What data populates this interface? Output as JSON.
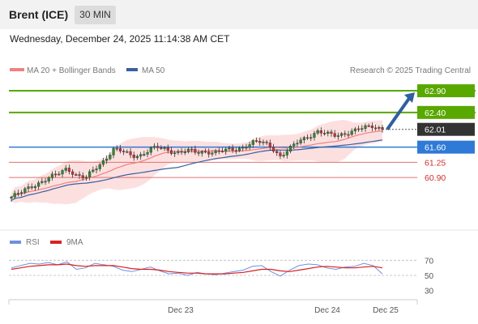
{
  "header": {
    "title": "Brent (ICE)",
    "timeframe": "30 MIN"
  },
  "subtitle": "Wednesday, December 24, 2025 11:14:38 AM CET",
  "legend": {
    "ma20": "MA 20 + Bollinger Bands",
    "ma50": "MA 50",
    "credit": "Research © 2025 Trading Central",
    "rsi": "RSI",
    "rsi_ma": "9MA"
  },
  "colors": {
    "resistance": "#58a800",
    "support": "#e07070",
    "pivot": "#2f7ad6",
    "current": "#333333",
    "ma20": "#f08080",
    "ma50": "#3a5fa0",
    "bands": "#fbd6d6",
    "up_candle": "#2e8b2e",
    "down_candle": "#d03030",
    "arrow": "#2f5f9f",
    "rsi": "#6f8fe0",
    "rsi_ma": "#d92020"
  },
  "chart_data": [
    {
      "type": "candlestick",
      "title": "Brent (ICE)",
      "timeframe": "30 MIN",
      "ylim": [
        59.8,
        63.2
      ],
      "x_ticks": [
        "Dec 23",
        "Dec 24",
        "Dec 25"
      ],
      "levels": [
        {
          "value": 62.9,
          "label": "62.90",
          "kind": "resistance"
        },
        {
          "value": 62.4,
          "label": "62.40",
          "kind": "resistance"
        },
        {
          "value": 62.01,
          "label": "62.01",
          "kind": "current"
        },
        {
          "value": 61.6,
          "label": "61.60",
          "kind": "pivot"
        },
        {
          "value": 61.25,
          "label": "61.25",
          "kind": "support"
        },
        {
          "value": 60.9,
          "label": "60.90",
          "kind": "support"
        }
      ],
      "series": [
        {
          "name": "MA 20 + Bollinger Bands"
        },
        {
          "name": "MA 50"
        }
      ],
      "close_path": [
        60.45,
        60.55,
        60.68,
        60.78,
        60.88,
        60.98,
        61.12,
        60.95,
        60.88,
        61.1,
        61.3,
        61.55,
        61.5,
        61.4,
        61.42,
        61.55,
        61.6,
        61.52,
        61.48,
        61.52,
        61.48,
        61.5,
        61.48,
        61.52,
        61.55,
        61.6,
        61.7,
        61.72,
        61.62,
        61.38,
        61.55,
        61.75,
        61.85,
        61.95,
        61.9,
        61.88,
        61.92,
        61.97,
        62.05,
        62.1,
        62.01
      ],
      "projection": {
        "from": 62.01,
        "to": 62.9
      }
    },
    {
      "type": "line",
      "title": "RSI",
      "ylim": [
        20,
        80
      ],
      "y_ticks": [
        70,
        50,
        30
      ],
      "series": [
        {
          "name": "RSI",
          "values": [
            60,
            63,
            66,
            65,
            67,
            64,
            68,
            58,
            60,
            66,
            64,
            62,
            57,
            55,
            58,
            61,
            56,
            52,
            53,
            50,
            54,
            52,
            51,
            53,
            55,
            57,
            62,
            63,
            55,
            49,
            57,
            63,
            65,
            64,
            60,
            58,
            61,
            62,
            66,
            63,
            52
          ]
        },
        {
          "name": "9MA",
          "values": [
            58,
            60,
            62,
            63,
            64,
            64,
            65,
            63,
            62,
            63,
            63,
            63,
            61,
            59,
            58,
            58,
            57,
            55,
            54,
            53,
            53,
            52,
            52,
            52,
            53,
            54,
            56,
            58,
            58,
            56,
            55,
            57,
            59,
            61,
            62,
            61,
            60,
            60,
            61,
            62,
            60
          ]
        }
      ]
    }
  ]
}
